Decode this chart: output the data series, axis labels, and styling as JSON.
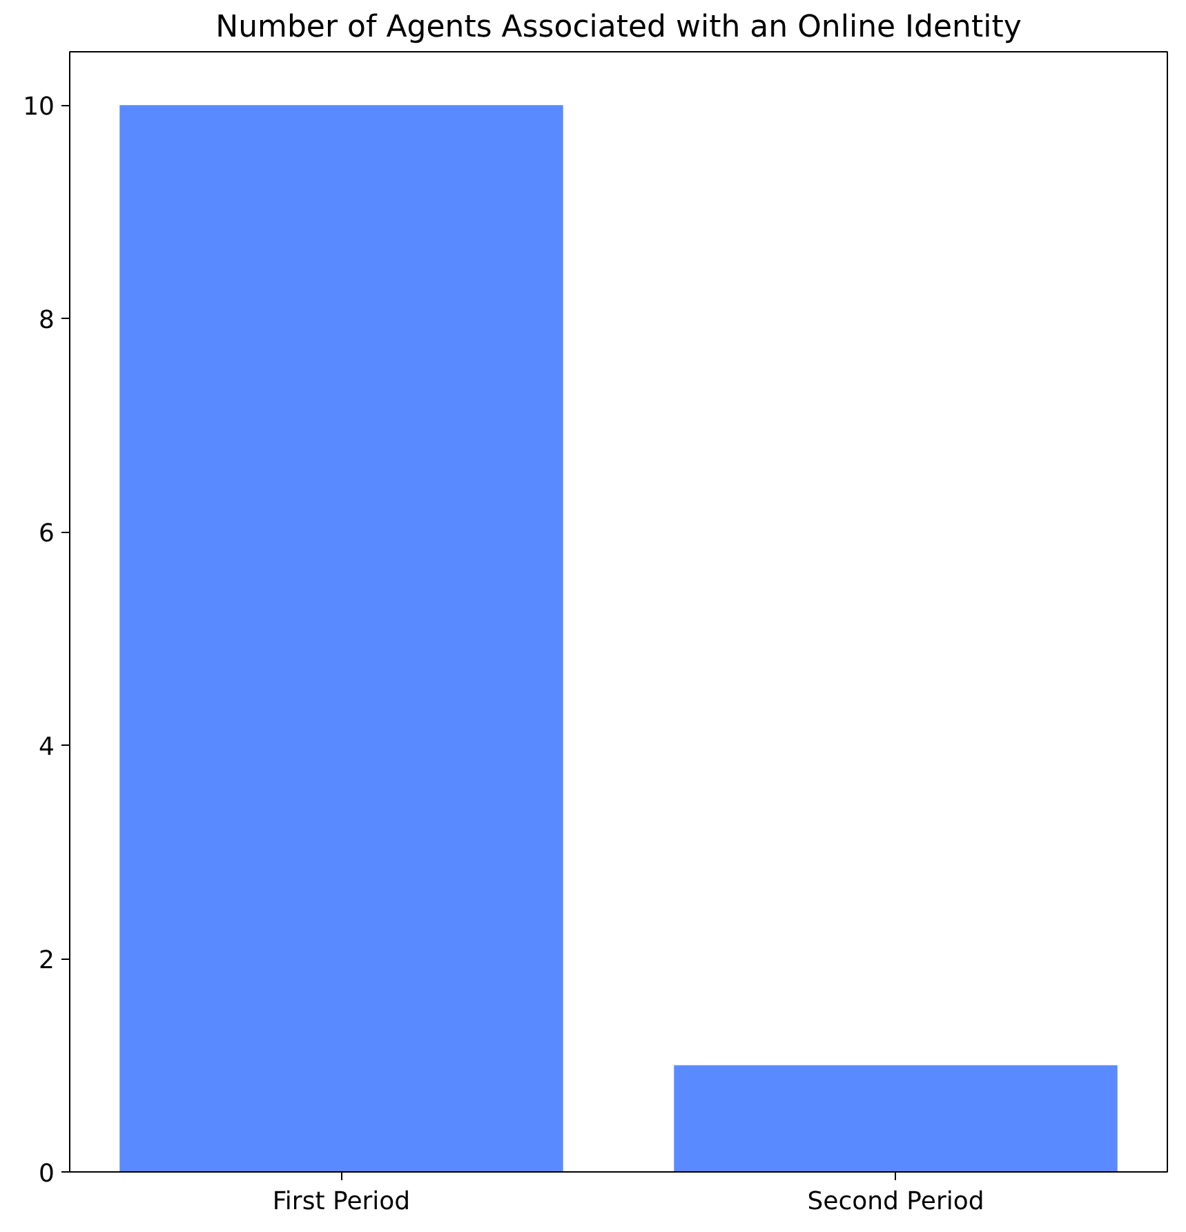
{
  "chart_data": {
    "type": "bar",
    "title": "Number of Agents Associated with an Online Identity",
    "categories": [
      "First Period",
      "Second Period"
    ],
    "values": [
      10,
      1
    ],
    "color": "#5a8aff",
    "ylim": [
      0,
      10.5
    ],
    "yticks": [
      0,
      2,
      4,
      6,
      8,
      10
    ],
    "grid": false
  }
}
